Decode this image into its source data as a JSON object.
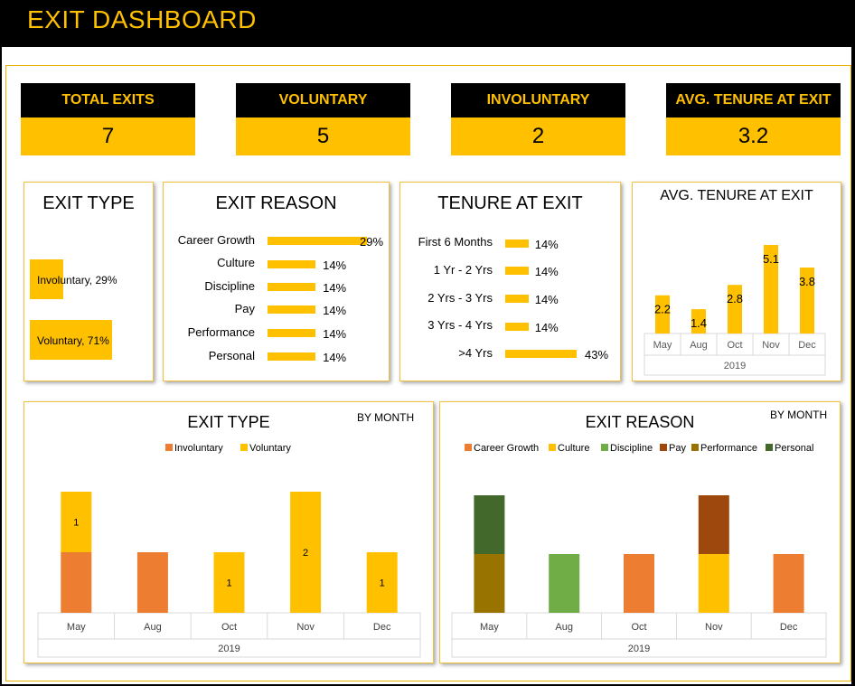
{
  "header": {
    "title": "EXIT DASHBOARD"
  },
  "kpis": [
    {
      "label": "TOTAL EXITS",
      "value": "7"
    },
    {
      "label": "VOLUNTARY",
      "value": "5"
    },
    {
      "label": "INVOLUNTARY",
      "value": "2"
    },
    {
      "label": "AVG. TENURE AT EXIT",
      "value": "3.2"
    }
  ],
  "colors": {
    "accent": "#FFC000",
    "involuntary": "#ED7D31",
    "career_growth": "#ED7D31",
    "culture": "#FFC000",
    "discipline": "#70AD47",
    "pay": "#9E480E",
    "performance": "#997300",
    "personal": "#43682B"
  },
  "chart_data": [
    {
      "type": "bar",
      "title": "EXIT TYPE",
      "orientation": "horizontal",
      "categories": [
        "Involuntary",
        "Voluntary"
      ],
      "values": [
        29,
        71
      ],
      "labels": [
        "Involuntary, 29%",
        "Voluntary, 71%"
      ]
    },
    {
      "type": "bar",
      "title": "EXIT REASON",
      "orientation": "horizontal",
      "categories": [
        "Career Growth",
        "Culture",
        "Discipline",
        "Pay",
        "Performance",
        "Personal"
      ],
      "values": [
        29,
        14,
        14,
        14,
        14,
        14
      ],
      "labels": [
        "29%",
        "14%",
        "14%",
        "14%",
        "14%",
        "14%"
      ]
    },
    {
      "type": "bar",
      "title": "TENURE AT EXIT",
      "orientation": "horizontal",
      "categories": [
        "First 6 Months",
        "1 Yr - 2 Yrs",
        "2 Yrs - 3 Yrs",
        "3 Yrs - 4 Yrs",
        ">4 Yrs"
      ],
      "values": [
        14,
        14,
        14,
        14,
        43
      ],
      "labels": [
        "14%",
        "14%",
        "14%",
        "14%",
        "43%"
      ]
    },
    {
      "type": "bar",
      "title": "AVG. TENURE AT EXIT",
      "categories": [
        "May",
        "Aug",
        "Oct",
        "Nov",
        "Dec"
      ],
      "group_label": "2019",
      "values": [
        2.2,
        1.4,
        2.8,
        5.1,
        3.8
      ],
      "labels": [
        "2.2",
        "1.4",
        "2.8",
        "5.1",
        "3.8"
      ],
      "ylim": [
        0,
        5.5
      ]
    },
    {
      "type": "bar",
      "stacked": true,
      "title": "EXIT TYPE",
      "subtitle": "BY MONTH",
      "categories": [
        "May",
        "Aug",
        "Oct",
        "Nov",
        "Dec"
      ],
      "group_label": "2019",
      "legend": "top",
      "series": [
        {
          "name": "Involuntary",
          "values": [
            1,
            1,
            0,
            0,
            0
          ],
          "labels": [
            "",
            "",
            "",
            "",
            ""
          ]
        },
        {
          "name": "Voluntary",
          "values": [
            1,
            0,
            1,
            2,
            1
          ],
          "labels": [
            "1",
            "",
            "1",
            "2",
            "1"
          ]
        }
      ],
      "ylim": [
        0,
        2
      ]
    },
    {
      "type": "bar",
      "stacked": true,
      "title": "EXIT REASON",
      "subtitle": "BY MONTH",
      "categories": [
        "May",
        "Aug",
        "Oct",
        "Nov",
        "Dec"
      ],
      "group_label": "2019",
      "legend": "top",
      "series": [
        {
          "name": "Career Growth",
          "values": [
            0,
            0,
            1,
            0,
            1
          ]
        },
        {
          "name": "Culture",
          "values": [
            0,
            0,
            0,
            1,
            0
          ]
        },
        {
          "name": "Discipline",
          "values": [
            0,
            1,
            0,
            0,
            0
          ]
        },
        {
          "name": "Pay",
          "values": [
            0,
            0,
            0,
            1,
            0
          ]
        },
        {
          "name": "Performance",
          "values": [
            1,
            0,
            0,
            0,
            0
          ]
        },
        {
          "name": "Personal",
          "values": [
            1,
            0,
            0,
            0,
            0
          ]
        }
      ],
      "ylim": [
        0,
        2
      ]
    }
  ]
}
